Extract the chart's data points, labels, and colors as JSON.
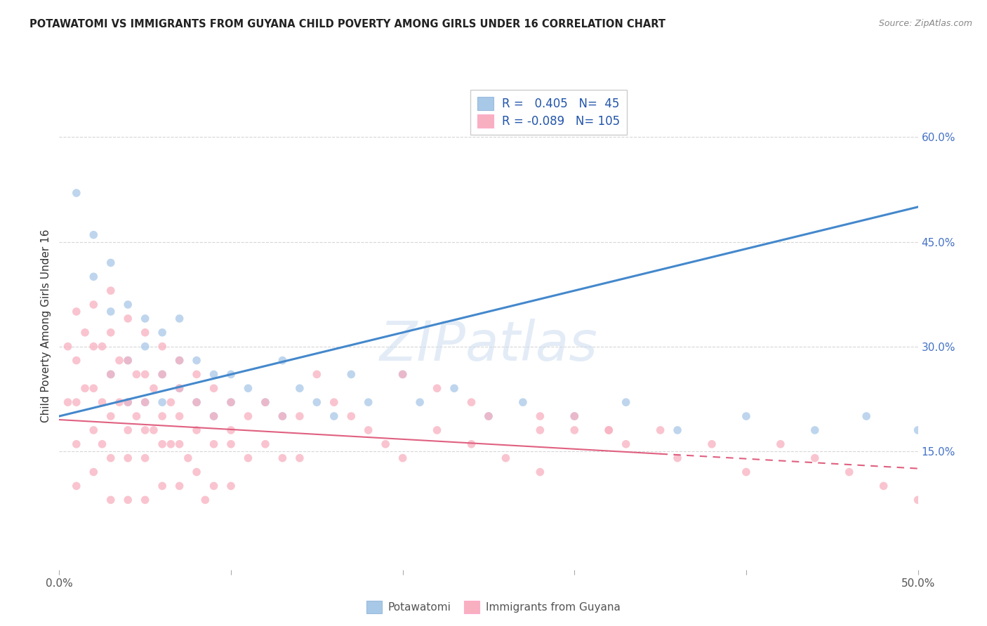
{
  "title": "POTAWATOMI VS IMMIGRANTS FROM GUYANA CHILD POVERTY AMONG GIRLS UNDER 16 CORRELATION CHART",
  "source": "Source: ZipAtlas.com",
  "ylabel_left": "Child Poverty Among Girls Under 16",
  "xlim": [
    0,
    0.5
  ],
  "ylim": [
    -0.02,
    0.68
  ],
  "yticks_right": [
    0.15,
    0.3,
    0.45,
    0.6
  ],
  "ytick_labels_right": [
    "15.0%",
    "30.0%",
    "45.0%",
    "60.0%"
  ],
  "blue_R": 0.405,
  "blue_N": 45,
  "pink_R": -0.089,
  "pink_N": 105,
  "blue_color": "#a8c8e8",
  "blue_line_color": "#4488cc",
  "pink_color": "#f8b0c0",
  "pink_line_color": "#e06080",
  "legend_label_blue": "Potawatomi",
  "legend_label_pink": "Immigrants from Guyana",
  "watermark": "ZIPatlas",
  "background_color": "#ffffff",
  "grid_color": "#cccccc",
  "blue_scatter_x": [
    0.01,
    0.02,
    0.02,
    0.03,
    0.03,
    0.03,
    0.04,
    0.04,
    0.04,
    0.05,
    0.05,
    0.05,
    0.06,
    0.06,
    0.06,
    0.07,
    0.07,
    0.07,
    0.08,
    0.08,
    0.09,
    0.09,
    0.1,
    0.1,
    0.11,
    0.12,
    0.13,
    0.13,
    0.14,
    0.15,
    0.16,
    0.17,
    0.18,
    0.2,
    0.21,
    0.23,
    0.25,
    0.27,
    0.3,
    0.33,
    0.36,
    0.4,
    0.44,
    0.47,
    0.5
  ],
  "blue_scatter_y": [
    0.52,
    0.46,
    0.4,
    0.42,
    0.35,
    0.26,
    0.36,
    0.28,
    0.22,
    0.34,
    0.3,
    0.22,
    0.32,
    0.26,
    0.22,
    0.34,
    0.28,
    0.24,
    0.28,
    0.22,
    0.26,
    0.2,
    0.26,
    0.22,
    0.24,
    0.22,
    0.28,
    0.2,
    0.24,
    0.22,
    0.2,
    0.26,
    0.22,
    0.26,
    0.22,
    0.24,
    0.2,
    0.22,
    0.2,
    0.22,
    0.18,
    0.2,
    0.18,
    0.2,
    0.18
  ],
  "pink_scatter_x": [
    0.005,
    0.005,
    0.01,
    0.01,
    0.01,
    0.01,
    0.01,
    0.015,
    0.015,
    0.02,
    0.02,
    0.02,
    0.02,
    0.02,
    0.025,
    0.025,
    0.025,
    0.03,
    0.03,
    0.03,
    0.03,
    0.03,
    0.03,
    0.035,
    0.035,
    0.04,
    0.04,
    0.04,
    0.04,
    0.04,
    0.04,
    0.045,
    0.045,
    0.05,
    0.05,
    0.05,
    0.05,
    0.05,
    0.05,
    0.055,
    0.055,
    0.06,
    0.06,
    0.06,
    0.06,
    0.06,
    0.065,
    0.065,
    0.07,
    0.07,
    0.07,
    0.07,
    0.07,
    0.075,
    0.08,
    0.08,
    0.08,
    0.08,
    0.085,
    0.09,
    0.09,
    0.09,
    0.09,
    0.1,
    0.1,
    0.1,
    0.1,
    0.11,
    0.11,
    0.12,
    0.12,
    0.13,
    0.13,
    0.14,
    0.14,
    0.15,
    0.16,
    0.17,
    0.18,
    0.19,
    0.2,
    0.22,
    0.24,
    0.26,
    0.28,
    0.3,
    0.33,
    0.36,
    0.4,
    0.42,
    0.44,
    0.46,
    0.48,
    0.5,
    0.25,
    0.28,
    0.3,
    0.32,
    0.35,
    0.38,
    0.2,
    0.22,
    0.24,
    0.28,
    0.32
  ],
  "pink_scatter_y": [
    0.3,
    0.22,
    0.35,
    0.28,
    0.22,
    0.16,
    0.1,
    0.32,
    0.24,
    0.36,
    0.3,
    0.24,
    0.18,
    0.12,
    0.3,
    0.22,
    0.16,
    0.38,
    0.32,
    0.26,
    0.2,
    0.14,
    0.08,
    0.28,
    0.22,
    0.34,
    0.28,
    0.22,
    0.18,
    0.14,
    0.08,
    0.26,
    0.2,
    0.32,
    0.26,
    0.22,
    0.18,
    0.14,
    0.08,
    0.24,
    0.18,
    0.3,
    0.26,
    0.2,
    0.16,
    0.1,
    0.22,
    0.16,
    0.28,
    0.24,
    0.2,
    0.16,
    0.1,
    0.14,
    0.26,
    0.22,
    0.18,
    0.12,
    0.08,
    0.24,
    0.2,
    0.16,
    0.1,
    0.22,
    0.18,
    0.16,
    0.1,
    0.2,
    0.14,
    0.22,
    0.16,
    0.2,
    0.14,
    0.2,
    0.14,
    0.26,
    0.22,
    0.2,
    0.18,
    0.16,
    0.14,
    0.18,
    0.16,
    0.14,
    0.12,
    0.18,
    0.16,
    0.14,
    0.12,
    0.16,
    0.14,
    0.12,
    0.1,
    0.08,
    0.2,
    0.18,
    0.2,
    0.18,
    0.18,
    0.16,
    0.26,
    0.24,
    0.22,
    0.2,
    0.18
  ]
}
